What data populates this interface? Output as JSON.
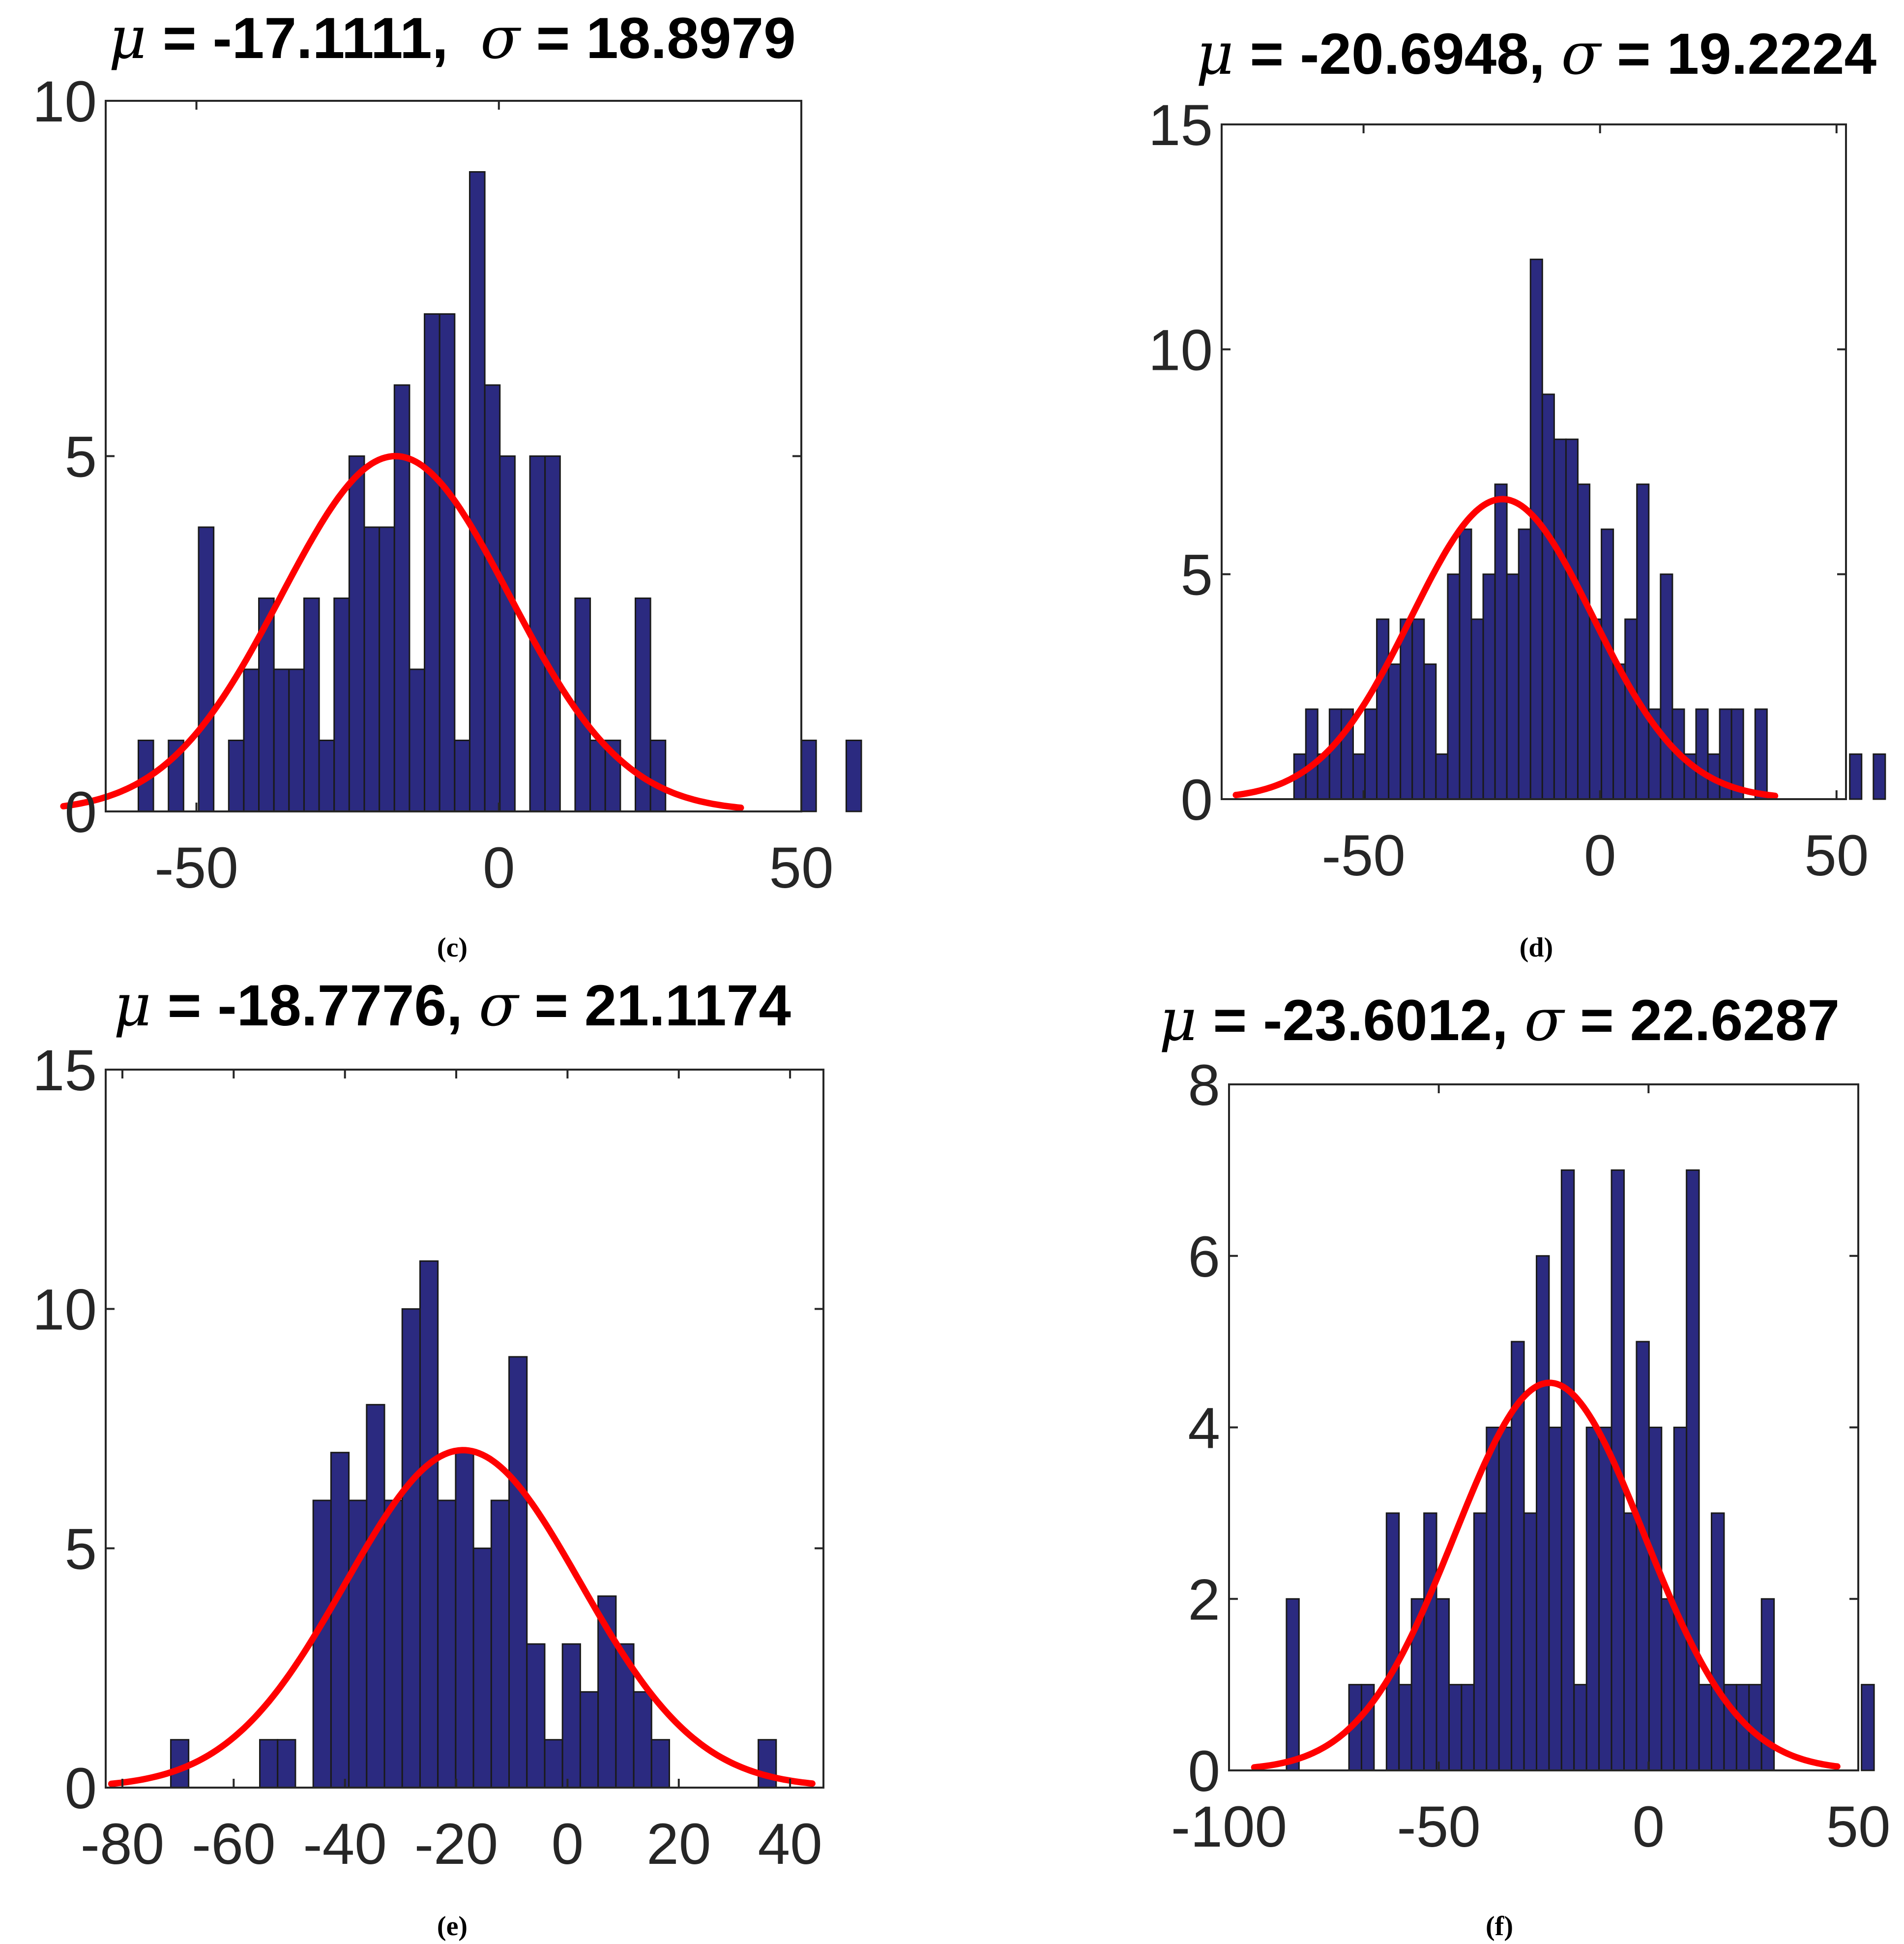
{
  "chart_data": [
    {
      "panel": "c",
      "type": "bar",
      "caption": "(c)",
      "title": "μ = -17.1111,  σ = 18.8979",
      "title_parts": {
        "mu_symbol": "μ",
        "mean_text": " = -17.1111,  ",
        "sigma_symbol": "σ",
        "std_text": " = 18.8979"
      },
      "mean": -17.1111,
      "std": 18.8979,
      "xlim": [
        -65,
        50
      ],
      "ylim": [
        0,
        10
      ],
      "xticks": [
        -50,
        0,
        50
      ],
      "yticks": [
        0,
        5,
        10
      ],
      "xtick_labels": [
        "-50",
        "0",
        "50"
      ],
      "ytick_labels": [
        "0",
        "5",
        "10"
      ],
      "bin_start": -59.6,
      "bin_width": 2.49,
      "counts": [
        1,
        0,
        1,
        0,
        4,
        0,
        1,
        2,
        3,
        2,
        2,
        3,
        1,
        3,
        5,
        4,
        4,
        6,
        2,
        7,
        7,
        1,
        9,
        6,
        5,
        0,
        5,
        5,
        0,
        3,
        1,
        1,
        0,
        3,
        1,
        0,
        0,
        0,
        0,
        0,
        0,
        0,
        0,
        0,
        1,
        0,
        0,
        1
      ],
      "fit_curve": {
        "x_start": -72,
        "x_end": 40,
        "peak": 5.0
      }
    },
    {
      "panel": "d",
      "type": "bar",
      "caption": "(d)",
      "title": "μ = -20.6948, σ = 19.2224",
      "title_parts": {
        "mu_symbol": "μ",
        "mean_text": " = -20.6948, ",
        "sigma_symbol": "σ",
        "std_text": " = 19.2224"
      },
      "mean": -20.6948,
      "std": 19.2224,
      "xlim": [
        -80,
        52
      ],
      "ylim": [
        0,
        15
      ],
      "xticks": [
        -50,
        0,
        50
      ],
      "yticks": [
        0,
        5,
        10,
        15
      ],
      "xtick_labels": [
        "-50",
        "0",
        "50"
      ],
      "ytick_labels": [
        "0",
        "5",
        "10",
        "15"
      ],
      "bin_start": -64.7,
      "bin_width": 2.5,
      "counts": [
        1,
        2,
        1,
        2,
        2,
        1,
        2,
        4,
        3,
        4,
        4,
        3,
        1,
        5,
        6,
        4,
        5,
        7,
        5,
        6,
        12,
        9,
        8,
        8,
        7,
        4,
        6,
        3,
        4,
        7,
        2,
        5,
        2,
        1,
        2,
        1,
        2,
        2,
        0,
        2,
        0,
        0,
        0,
        0,
        0,
        0,
        0,
        1,
        0,
        1
      ],
      "fit_curve": {
        "x_start": -77,
        "x_end": 37,
        "peak": 6.67
      }
    },
    {
      "panel": "e",
      "type": "bar",
      "caption": "(e)",
      "title": "μ = -18.7776, σ = 21.1174",
      "title_parts": {
        "mu_symbol": "μ",
        "mean_text": " = -18.7776, ",
        "sigma_symbol": "σ",
        "std_text": " = 21.1174"
      },
      "mean": -18.7776,
      "std": 21.1174,
      "xlim": [
        -83,
        46
      ],
      "ylim": [
        0,
        15
      ],
      "xticks": [
        -80,
        -60,
        -40,
        -20,
        0,
        20,
        40
      ],
      "yticks": [
        0,
        5,
        10,
        15
      ],
      "xtick_labels": [
        "-80",
        "-60",
        "-40",
        "-20",
        "0",
        "20",
        "40"
      ],
      "ytick_labels": [
        "0",
        "5",
        "10",
        "15"
      ],
      "bin_start": -71.3,
      "bin_width": 3.2,
      "counts": [
        1,
        0,
        0,
        0,
        0,
        1,
        1,
        0,
        6,
        7,
        6,
        8,
        6,
        10,
        11,
        6,
        7,
        5,
        6,
        9,
        3,
        1,
        3,
        2,
        4,
        3,
        2,
        1,
        0,
        0,
        0,
        0,
        0,
        1
      ],
      "fit_curve": {
        "x_start": -82,
        "x_end": 44,
        "peak": 7.05
      }
    },
    {
      "panel": "f",
      "type": "bar",
      "caption": "(f)",
      "title": "μ = -23.6012, σ = 22.6287",
      "title_parts": {
        "mu_symbol": "μ",
        "mean_text": " = -23.6012, ",
        "sigma_symbol": "σ",
        "std_text": " = 22.6287"
      },
      "mean": -23.6012,
      "std": 22.6287,
      "xlim": [
        -100,
        50
      ],
      "ylim": [
        0,
        8
      ],
      "xticks": [
        -100,
        -50,
        0,
        50
      ],
      "yticks": [
        0,
        2,
        4,
        6,
        8
      ],
      "xtick_labels": [
        "-100",
        "-50",
        "0",
        "50"
      ],
      "ytick_labels": [
        "0",
        "2",
        "4",
        "6",
        "8"
      ],
      "bin_start": -86.3,
      "bin_width": 2.98,
      "counts": [
        2,
        0,
        0,
        0,
        0,
        1,
        1,
        0,
        3,
        1,
        2,
        3,
        2,
        1,
        1,
        3,
        4,
        4,
        5,
        3,
        6,
        4,
        7,
        1,
        4,
        4,
        7,
        3,
        5,
        4,
        2,
        4,
        7,
        1,
        3,
        1,
        1,
        1,
        2,
        0,
        0,
        0,
        0,
        0,
        0,
        0,
        1
      ],
      "fit_curve": {
        "x_start": -94,
        "x_end": 45,
        "peak": 4.52
      }
    }
  ]
}
